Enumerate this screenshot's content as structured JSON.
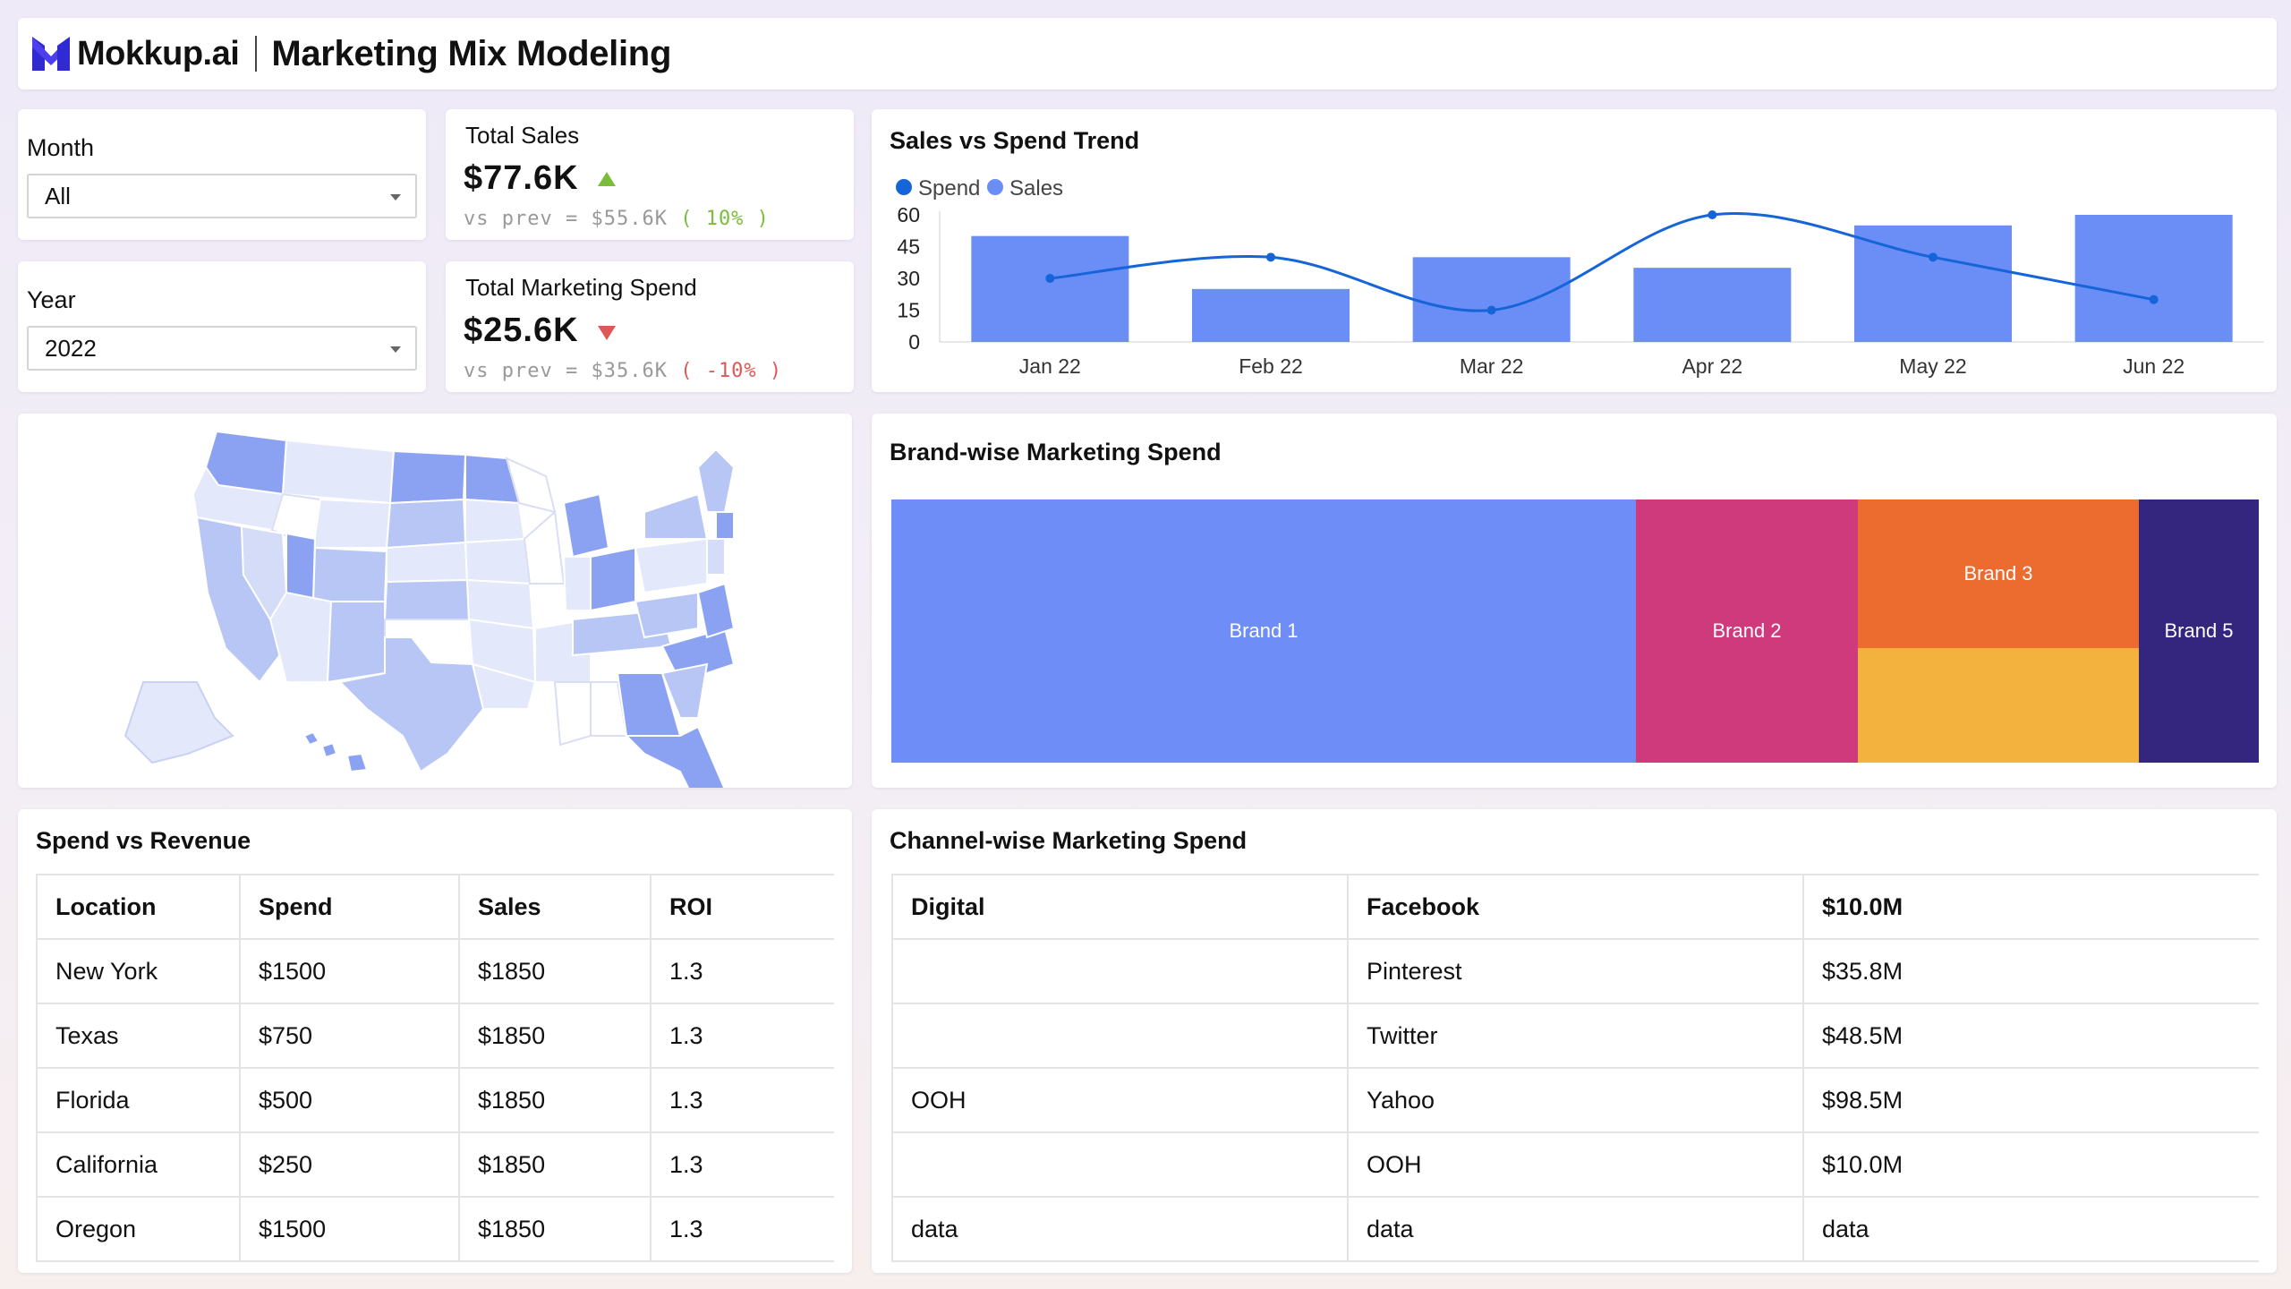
{
  "header": {
    "logo_text": "Mokkup.ai",
    "title": "Marketing Mix Modeling"
  },
  "filters": {
    "month": {
      "label": "Month",
      "value": "All"
    },
    "year": {
      "label": "Year",
      "value": "2022"
    }
  },
  "kpis": {
    "total_sales": {
      "title": "Total Sales",
      "value": "$77.6K",
      "prev_label": "vs prev =",
      "prev_value": "$55.6K",
      "delta": "( 10% )",
      "trend": "up"
    },
    "total_spend": {
      "title": "Total Marketing Spend",
      "value": "$25.6K",
      "prev_label": "vs prev =",
      "prev_value": "$35.6K",
      "delta": "( -10% )",
      "trend": "down"
    }
  },
  "trend_chart": {
    "title": "Sales vs Spend Trend",
    "colors": {
      "spend": "#1565d8",
      "sales": "#6b8df6"
    }
  },
  "chart_data": {
    "type": "bar",
    "categories": [
      "Jan 22",
      "Feb 22",
      "Mar 22",
      "Apr 22",
      "May 22",
      "Jun 22"
    ],
    "series": [
      {
        "name": "Spend",
        "type": "line",
        "values": [
          30,
          40,
          15,
          60,
          40,
          20
        ]
      },
      {
        "name": "Sales",
        "type": "bar",
        "values": [
          50,
          25,
          40,
          35,
          55,
          60
        ]
      }
    ],
    "yticks": [
      0,
      15,
      30,
      45,
      60
    ],
    "ylim": [
      0,
      60
    ],
    "legend": "top-left",
    "grid": false
  },
  "map": {
    "icon": "us-map-icon",
    "colors": {
      "light": "#e3e8fb",
      "mid": "#b8c6f5",
      "dark": "#8aa2f1"
    }
  },
  "treemap": {
    "title": "Brand-wise Marketing Spend",
    "items": [
      {
        "label": "Brand 1",
        "color": "#6e8df6"
      },
      {
        "label": "Brand 2",
        "color": "#cf3a7d"
      },
      {
        "label": "Brand 3",
        "color": "#ec6b2e"
      },
      {
        "label": "",
        "color": "#f3b23e"
      },
      {
        "label": "Brand 5",
        "color": "#34257e"
      }
    ]
  },
  "spend_revenue": {
    "title": "Spend vs Revenue",
    "columns": [
      "Location",
      "Spend",
      "Sales",
      "ROI"
    ],
    "rows": [
      [
        "New York",
        "$1500",
        "$1850",
        "1.3"
      ],
      [
        "Texas",
        "$750",
        "$1850",
        "1.3"
      ],
      [
        "Florida",
        "$500",
        "$1850",
        "1.3"
      ],
      [
        "California",
        "$250",
        "$1850",
        "1.3"
      ],
      [
        "Oregon",
        "$1500",
        "$1850",
        "1.3"
      ]
    ]
  },
  "channel_spend": {
    "title": "Channel-wise Marketing Spend",
    "columns": [
      "Digital",
      "Facebook",
      "$10.0M"
    ],
    "rows": [
      [
        "",
        "Pinterest",
        "$35.8M"
      ],
      [
        "",
        "Twitter",
        "$48.5M"
      ],
      [
        "OOH",
        "Yahoo",
        "$98.5M"
      ],
      [
        "",
        "OOH",
        "$10.0M"
      ],
      [
        "data",
        "data",
        "data"
      ]
    ]
  }
}
